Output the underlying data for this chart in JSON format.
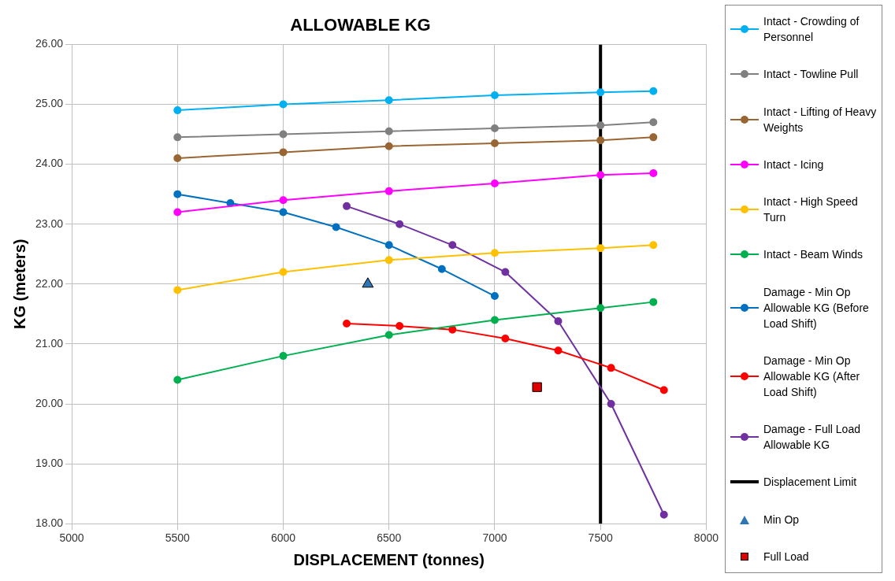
{
  "chart_data": {
    "type": "line",
    "title": "ALLOWABLE KG",
    "xlabel": "DISPLACEMENT (tonnes)",
    "ylabel": "KG (meters)",
    "x": [
      5500,
      6000,
      6500,
      7000,
      7500,
      7750
    ],
    "xlim": [
      5000,
      8000
    ],
    "xticks": [
      5000,
      5500,
      6000,
      6500,
      7000,
      7500,
      8000
    ],
    "ylim": [
      18,
      26
    ],
    "yticks": [
      {
        "value": 18,
        "label": "18.00"
      },
      {
        "value": 19,
        "label": "19.00"
      },
      {
        "value": 20,
        "label": "20.00"
      },
      {
        "value": 21,
        "label": "21.00"
      },
      {
        "value": 22,
        "label": "22.00"
      },
      {
        "value": 23,
        "label": "23.00"
      },
      {
        "value": 24,
        "label": "24.00"
      },
      {
        "value": 25,
        "label": "25.00"
      },
      {
        "value": 26,
        "label": "26.00"
      }
    ],
    "grid": true,
    "legend": "right",
    "marker": "circle",
    "line_style": "solid",
    "series": [
      {
        "name": "Intact - Crowding of Personnel",
        "color": "#00b0f0",
        "values": [
          24.9,
          25.0,
          25.07,
          25.15,
          25.2,
          25.22
        ]
      },
      {
        "name": "Intact - Towline Pull",
        "color": "#808080",
        "values": [
          24.45,
          24.5,
          24.55,
          24.6,
          24.65,
          24.7
        ]
      },
      {
        "name": "Intact - Lifting of Heavy Weights",
        "color": "#996633",
        "values": [
          24.1,
          24.2,
          24.3,
          24.35,
          24.4,
          24.45
        ]
      },
      {
        "name": "Intact - Icing",
        "color": "#ff00ff",
        "values": [
          23.2,
          23.4,
          23.55,
          23.68,
          23.82,
          23.85
        ]
      },
      {
        "name": "Intact - High Speed Turn",
        "color": "#ffc000",
        "values": [
          21.9,
          22.2,
          22.4,
          22.52,
          22.6,
          22.65
        ]
      },
      {
        "name": "Intact - Beam Winds",
        "color": "#00b050",
        "values": [
          20.4,
          20.8,
          21.15,
          21.4,
          21.6,
          21.7
        ]
      },
      {
        "name": "Damage - Min Op Allowable KG (Before Load Shift)",
        "color": "#0070c0",
        "x": [
          5500,
          5750,
          6000,
          6250,
          6500,
          6750,
          7000
        ],
        "values": [
          23.5,
          23.35,
          23.2,
          22.95,
          22.65,
          22.25,
          21.8
        ]
      },
      {
        "name": "Damage - Min Op Allowable KG (After Load Shift)",
        "color": "#ff0000",
        "x": [
          6300,
          6550,
          6800,
          7050,
          7300,
          7550,
          7800
        ],
        "values": [
          21.34,
          21.3,
          21.24,
          21.09,
          20.89,
          20.6,
          20.23
        ]
      },
      {
        "name": "Damage - Full Load Allowable KG",
        "color": "#7030a0",
        "x": [
          6300,
          6550,
          6800,
          7050,
          7300,
          7550,
          7800
        ],
        "values": [
          23.3,
          23.0,
          22.65,
          22.2,
          21.38,
          20.0,
          18.15
        ]
      },
      {
        "name": "Displacement Limit",
        "color": "#000000",
        "x": [
          7500,
          7500
        ],
        "values": [
          18,
          26
        ],
        "marker": "none"
      },
      {
        "name": "Min Op",
        "type": "scatter",
        "color": "#2e75b6",
        "x": [
          6400
        ],
        "values": [
          22.0
        ],
        "marker": "triangle"
      },
      {
        "name": "Full Load",
        "type": "scatter",
        "color": "#e00000",
        "x": [
          7200
        ],
        "values": [
          20.28
        ],
        "marker": "square"
      }
    ]
  }
}
